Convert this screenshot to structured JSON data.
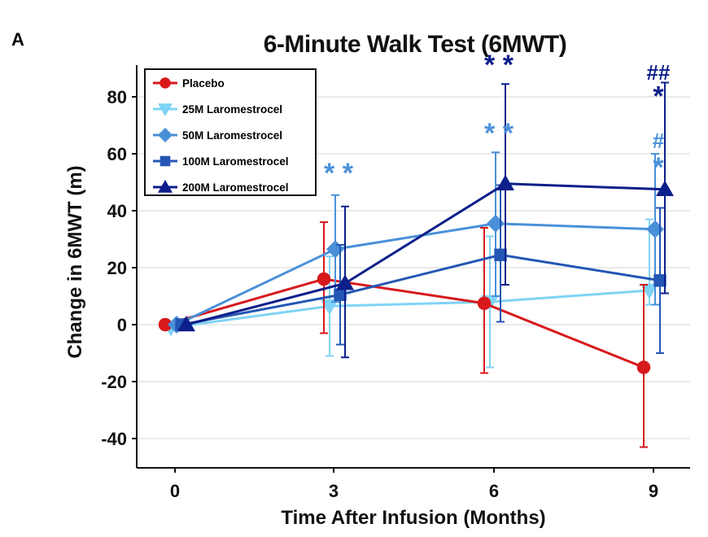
{
  "panel_label": "A",
  "chart_data": {
    "type": "line",
    "title": "6-Minute Walk Test (6MWT)",
    "xlabel": "Time After Infusion (Months)",
    "ylabel": "Change in 6MWT (m)",
    "x": [
      0,
      3,
      6,
      9
    ],
    "x_ticks": [
      "0",
      "3",
      "6",
      "9"
    ],
    "y_ticks": [
      "80",
      "60",
      "40",
      "20",
      "0",
      "-20",
      "-40"
    ],
    "ylim": [
      -50,
      90
    ],
    "grid": "horizontal",
    "legend_position": "top-left",
    "series": [
      {
        "name": "Placebo",
        "color": "#d7191c",
        "marker": "circle",
        "values": [
          0,
          16,
          7.5,
          -15
        ],
        "lower": [
          0,
          -3,
          -17,
          -43
        ],
        "upper": [
          0,
          36,
          34,
          14
        ]
      },
      {
        "name": "25M Laromestrocel",
        "color": "#7fd3f5",
        "marker": "triangle-down",
        "values": [
          -1,
          6.5,
          8,
          12
        ],
        "lower": [
          -1,
          -11,
          -15,
          7
        ],
        "upper": [
          -1,
          24,
          31,
          37
        ]
      },
      {
        "name": "50M Laromestrocel",
        "color": "#4a90d9",
        "marker": "diamond",
        "values": [
          0,
          26.5,
          35.5,
          33.5
        ],
        "lower": [
          0,
          8,
          10,
          7
        ],
        "upper": [
          0,
          45.5,
          60.5,
          60
        ]
      },
      {
        "name": "100M Laromestrocel",
        "color": "#2456b4",
        "marker": "square",
        "values": [
          0,
          10.5,
          24.5,
          15.5
        ],
        "lower": [
          0,
          -7,
          1,
          -10
        ],
        "upper": [
          0,
          28,
          49,
          41
        ]
      },
      {
        "name": "200M Laromestrocel",
        "color": "#0d1f8a",
        "marker": "triangle-up",
        "values": [
          0,
          14.5,
          49.5,
          47.5
        ],
        "lower": [
          0,
          -11.5,
          14,
          11
        ],
        "upper": [
          0,
          41.5,
          84.5,
          85
        ]
      }
    ],
    "annotations": [
      {
        "text": "* *",
        "x": 3,
        "y": 50,
        "color": "#4a90d9"
      },
      {
        "text": "* *",
        "x": 6,
        "y": 64,
        "color": "#4a90d9"
      },
      {
        "text": "* *",
        "x": 6,
        "y": 88,
        "color": "#0d1f8a"
      },
      {
        "text": "#",
        "x": 9,
        "y": 62,
        "color": "#4a90d9"
      },
      {
        "text": "*",
        "x": 9,
        "y": 52,
        "color": "#4a90d9"
      },
      {
        "text": "##",
        "x": 9,
        "y": 86,
        "color": "#0d1f8a"
      },
      {
        "text": "*",
        "x": 9,
        "y": 77,
        "color": "#0d1f8a"
      }
    ]
  }
}
